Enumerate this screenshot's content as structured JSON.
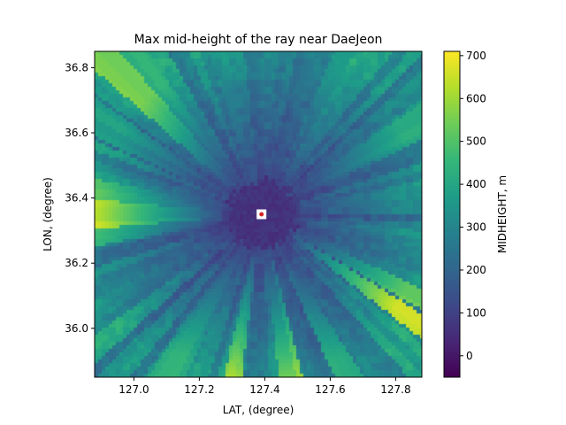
{
  "chart_data": {
    "type": "heatmap",
    "title": "Max mid-height of the ray near DaeJeon",
    "xlabel": "LAT, (degree)",
    "ylabel": "LON, (degree)",
    "xlim": [
      126.88,
      127.88
    ],
    "ylim": [
      35.85,
      36.85
    ],
    "xticks": [
      127.0,
      127.2,
      127.4,
      127.6,
      127.8
    ],
    "xtick_labels": [
      "127.0",
      "127.2",
      "127.4",
      "127.6",
      "127.8"
    ],
    "yticks": [
      36.0,
      36.2,
      36.4,
      36.6,
      36.8
    ],
    "ytick_labels": [
      "36.0",
      "36.2",
      "36.4",
      "36.6",
      "36.8"
    ],
    "colorbar": {
      "label": "MIDHEIGHT, m",
      "colormap": "viridis",
      "range": [
        -50,
        710
      ],
      "ticks": [
        0,
        100,
        200,
        300,
        400,
        500,
        600,
        700
      ],
      "tick_labels": [
        "0",
        "100",
        "200",
        "300",
        "400",
        "500",
        "600",
        "700"
      ]
    },
    "site": {
      "x": 127.39,
      "y": 36.35,
      "marker_color": "#d62728",
      "box_color": "#ffffff"
    },
    "grid": false
  }
}
